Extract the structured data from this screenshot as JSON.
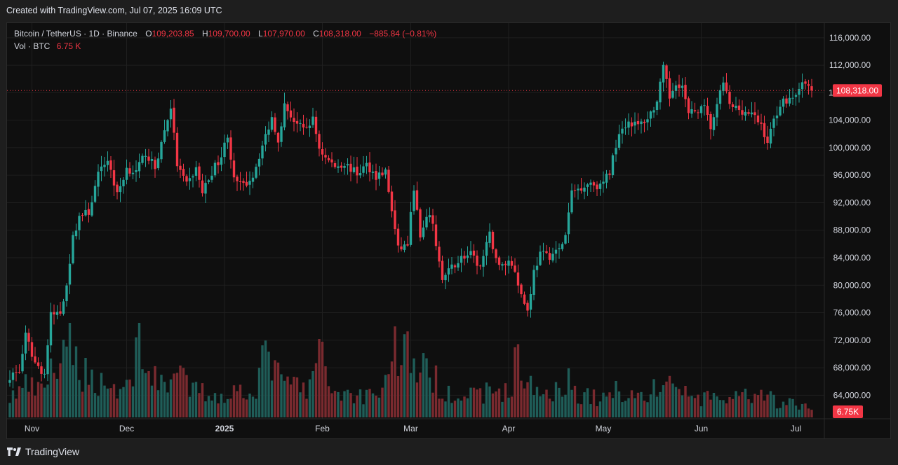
{
  "header": {
    "caption": "Created with TradingView.com, Jul 07, 2025 16:09 UTC"
  },
  "legend": {
    "symbol": "Bitcoin / TetherUS · 1D · Binance",
    "o_label": "O",
    "o_value": "109,203.85",
    "h_label": "H",
    "h_value": "109,700.00",
    "l_label": "L",
    "l_value": "107,970.00",
    "c_label": "C",
    "c_value": "108,318.00",
    "change": "−885.84 (−0.81%)",
    "vol_label": "Vol · BTC",
    "vol_value": "6.75 K"
  },
  "footer": {
    "brand": "TradingView"
  },
  "colors": {
    "up": "#26a69a",
    "down": "#f23645",
    "vol_up": "#1f5d58",
    "vol_down": "#7a2a2f",
    "grid": "#1f1f1f",
    "axis_text": "#d1d4dc"
  },
  "chart_data": {
    "type": "candlestick",
    "title": "Bitcoin / TetherUS · 1D · Binance",
    "ylim": [
      62000,
      117000
    ],
    "y_ticks": [
      64000,
      68000,
      72000,
      76000,
      80000,
      84000,
      88000,
      92000,
      96000,
      100000,
      104000,
      108000,
      112000,
      116000
    ],
    "y_tick_labels": [
      "64,000.00",
      "68,000.00",
      "72,000.00",
      "76,000.00",
      "80,000.00",
      "84,000.00",
      "88,000.00",
      "92,000.00",
      "96,000.00",
      "100,000.00",
      "104,000.00",
      "108,000.00",
      "112,000.00",
      "116,000.00"
    ],
    "x_ticks": [
      {
        "label": "Nov",
        "day": 7
      },
      {
        "label": "Dec",
        "day": 37
      },
      {
        "label": "2025",
        "day": 68
      },
      {
        "label": "Feb",
        "day": 99
      },
      {
        "label": "Mar",
        "day": 127
      },
      {
        "label": "Apr",
        "day": 158
      },
      {
        "label": "May",
        "day": 188
      },
      {
        "label": "Jun",
        "day": 219
      },
      {
        "label": "Jul",
        "day": 249
      }
    ],
    "last_price": 108318,
    "last_price_label": "108,318.00",
    "last_volume_label": "6.75K",
    "close_keypoints": [
      [
        0,
        66800
      ],
      [
        3,
        67500
      ],
      [
        5,
        72600
      ],
      [
        8,
        68700
      ],
      [
        11,
        67100
      ],
      [
        13,
        75600
      ],
      [
        16,
        76000
      ],
      [
        18,
        80300
      ],
      [
        20,
        86800
      ],
      [
        22,
        90100
      ],
      [
        25,
        90600
      ],
      [
        28,
        96000
      ],
      [
        31,
        98400
      ],
      [
        34,
        93100
      ],
      [
        37,
        97000
      ],
      [
        40,
        96400
      ],
      [
        43,
        99300
      ],
      [
        46,
        97000
      ],
      [
        48,
        100700
      ],
      [
        51,
        106000
      ],
      [
        53,
        97500
      ],
      [
        56,
        94500
      ],
      [
        59,
        97000
      ],
      [
        61,
        93500
      ],
      [
        64,
        96500
      ],
      [
        67,
        98800
      ],
      [
        69,
        102000
      ],
      [
        71,
        95200
      ],
      [
        74,
        94400
      ],
      [
        77,
        96000
      ],
      [
        80,
        100300
      ],
      [
        83,
        104400
      ],
      [
        85,
        101200
      ],
      [
        87,
        106100
      ],
      [
        90,
        104000
      ],
      [
        93,
        102500
      ],
      [
        96,
        104100
      ],
      [
        98,
        100000
      ],
      [
        100,
        98500
      ],
      [
        103,
        97300
      ],
      [
        106,
        97700
      ],
      [
        110,
        96200
      ],
      [
        113,
        97500
      ],
      [
        116,
        95900
      ],
      [
        119,
        96500
      ],
      [
        123,
        85200
      ],
      [
        126,
        86000
      ],
      [
        128,
        94300
      ],
      [
        130,
        86800
      ],
      [
        133,
        90600
      ],
      [
        135,
        86100
      ],
      [
        137,
        80700
      ],
      [
        140,
        82600
      ],
      [
        143,
        84000
      ],
      [
        146,
        84400
      ],
      [
        149,
        82600
      ],
      [
        152,
        87300
      ],
      [
        155,
        82600
      ],
      [
        158,
        83500
      ],
      [
        160,
        82300
      ],
      [
        162,
        78600
      ],
      [
        164,
        76300
      ],
      [
        166,
        82000
      ],
      [
        168,
        84500
      ],
      [
        171,
        84300
      ],
      [
        174,
        85100
      ],
      [
        176,
        87200
      ],
      [
        178,
        93500
      ],
      [
        181,
        94300
      ],
      [
        184,
        95000
      ],
      [
        187,
        94300
      ],
      [
        190,
        96500
      ],
      [
        193,
        102500
      ],
      [
        196,
        103800
      ],
      [
        199,
        103200
      ],
      [
        202,
        104300
      ],
      [
        205,
        106600
      ],
      [
        207,
        111500
      ],
      [
        209,
        107300
      ],
      [
        211,
        109600
      ],
      [
        213,
        108900
      ],
      [
        215,
        104800
      ],
      [
        218,
        105600
      ],
      [
        220,
        105700
      ],
      [
        222,
        103000
      ],
      [
        224,
        105900
      ],
      [
        226,
        109700
      ],
      [
        228,
        106000
      ],
      [
        230,
        105800
      ],
      [
        233,
        105200
      ],
      [
        235,
        104800
      ],
      [
        238,
        103300
      ],
      [
        240,
        100800
      ],
      [
        242,
        104000
      ],
      [
        244,
        106400
      ],
      [
        246,
        107000
      ],
      [
        248,
        107300
      ],
      [
        250,
        108900
      ],
      [
        252,
        109200
      ],
      [
        254,
        108318
      ]
    ],
    "volume_keypoints": [
      [
        0,
        28
      ],
      [
        5,
        45
      ],
      [
        10,
        35
      ],
      [
        13,
        75
      ],
      [
        16,
        60
      ],
      [
        19,
        110
      ],
      [
        22,
        70
      ],
      [
        26,
        55
      ],
      [
        30,
        50
      ],
      [
        34,
        40
      ],
      [
        38,
        45
      ],
      [
        41,
        125
      ],
      [
        45,
        50
      ],
      [
        49,
        55
      ],
      [
        53,
        60
      ],
      [
        57,
        40
      ],
      [
        62,
        35
      ],
      [
        66,
        30
      ],
      [
        70,
        35
      ],
      [
        74,
        40
      ],
      [
        78,
        45
      ],
      [
        82,
        100
      ],
      [
        86,
        45
      ],
      [
        90,
        50
      ],
      [
        94,
        35
      ],
      [
        98,
        90
      ],
      [
        102,
        40
      ],
      [
        106,
        35
      ],
      [
        110,
        30
      ],
      [
        114,
        35
      ],
      [
        118,
        40
      ],
      [
        122,
        100
      ],
      [
        126,
        95
      ],
      [
        130,
        70
      ],
      [
        134,
        55
      ],
      [
        138,
        40
      ],
      [
        142,
        35
      ],
      [
        146,
        30
      ],
      [
        150,
        35
      ],
      [
        154,
        40
      ],
      [
        158,
        35
      ],
      [
        161,
        90
      ],
      [
        164,
        45
      ],
      [
        168,
        35
      ],
      [
        172,
        40
      ],
      [
        176,
        55
      ],
      [
        180,
        35
      ],
      [
        184,
        30
      ],
      [
        188,
        25
      ],
      [
        192,
        40
      ],
      [
        196,
        35
      ],
      [
        200,
        30
      ],
      [
        205,
        40
      ],
      [
        208,
        55
      ],
      [
        212,
        40
      ],
      [
        216,
        30
      ],
      [
        220,
        25
      ],
      [
        224,
        30
      ],
      [
        228,
        25
      ],
      [
        232,
        30
      ],
      [
        236,
        25
      ],
      [
        240,
        30
      ],
      [
        244,
        20
      ],
      [
        248,
        20
      ],
      [
        252,
        15
      ],
      [
        254,
        10
      ]
    ]
  }
}
